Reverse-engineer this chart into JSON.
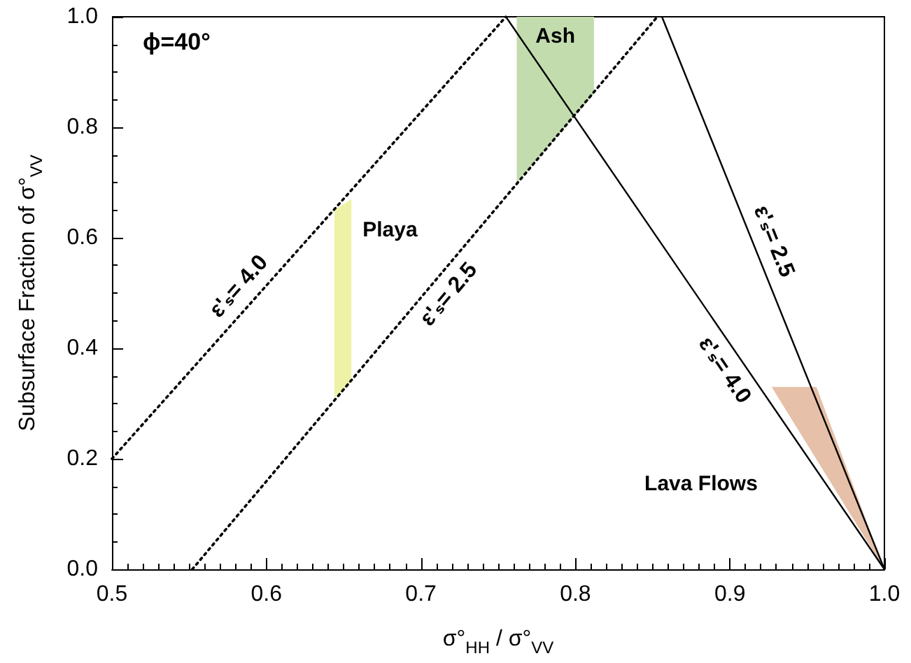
{
  "chart_data": {
    "type": "line",
    "xlabel": "σ°$_{HH}$ / σ°$_{VV}$",
    "ylabel": "Subsurface Fraction of σ°$_{VV}$",
    "annotations": [
      "ϕ=40°"
    ],
    "xlim": [
      0.5,
      1.0
    ],
    "xticks": [
      {
        "value": 0.5,
        "label": "0.5"
      },
      {
        "value": 0.6,
        "label": "0.6"
      },
      {
        "value": 0.7,
        "label": "0.7"
      },
      {
        "value": 0.8,
        "label": "0.8"
      },
      {
        "value": 0.9,
        "label": "0.9"
      },
      {
        "value": 1.0,
        "label": "1.0"
      }
    ],
    "ylim": [
      0,
      1.0
    ],
    "yticks": [
      {
        "value": 0,
        "label": "0.0"
      },
      {
        "value": 0.2,
        "label": "0.2"
      },
      {
        "value": 0.4,
        "label": "0.4"
      },
      {
        "value": 0.6,
        "label": "0.6"
      },
      {
        "value": 0.8,
        "label": "0.8"
      },
      {
        "value": 1.0,
        "label": "1.0"
      }
    ],
    "grid": false,
    "legend": false,
    "marker": "none",
    "series": [
      {
        "type": "area",
        "name": "Ash",
        "color": "#c2dcae",
        "x": [
          0.762,
          0.812,
          0.812,
          0.762
        ],
        "values": [
          1.0,
          1.0,
          0.86,
          0.7
        ]
      },
      {
        "type": "area",
        "name": "Playa",
        "color": "#eef2a6",
        "x": [
          0.644,
          0.655,
          0.655,
          0.644
        ],
        "values": [
          0.65,
          0.67,
          0.34,
          0.31
        ]
      },
      {
        "type": "area",
        "name": "Lava Flows",
        "color": "#e6c0a8",
        "x": [
          0.927,
          0.956,
          1.0,
          0.927
        ],
        "values": [
          0.33,
          0.33,
          0,
          0.33
        ]
      },
      {
        "type": "line",
        "name": "ε'ₛ= 4.0",
        "color": "#000000",
        "line_style": "dotted",
        "x": [
          0.5,
          0.755
        ],
        "values": [
          0.2,
          1.0
        ]
      },
      {
        "type": "line",
        "name": "ε'ₛ= 2.5",
        "color": "#000000",
        "line_style": "dotted",
        "x": [
          0.552,
          0.853
        ],
        "values": [
          0,
          1.0
        ]
      },
      {
        "type": "line",
        "name": "ε'ₛ= 4.0",
        "color": "#000000",
        "line_style": "solid",
        "x": [
          0.755,
          1.0
        ],
        "values": [
          1.0,
          0
        ]
      },
      {
        "type": "line",
        "name": "ε'ₛ= 2.5",
        "color": "#000000",
        "line_style": "solid",
        "x": [
          0.856,
          1.0
        ],
        "values": [
          1.0,
          0
        ]
      }
    ]
  }
}
